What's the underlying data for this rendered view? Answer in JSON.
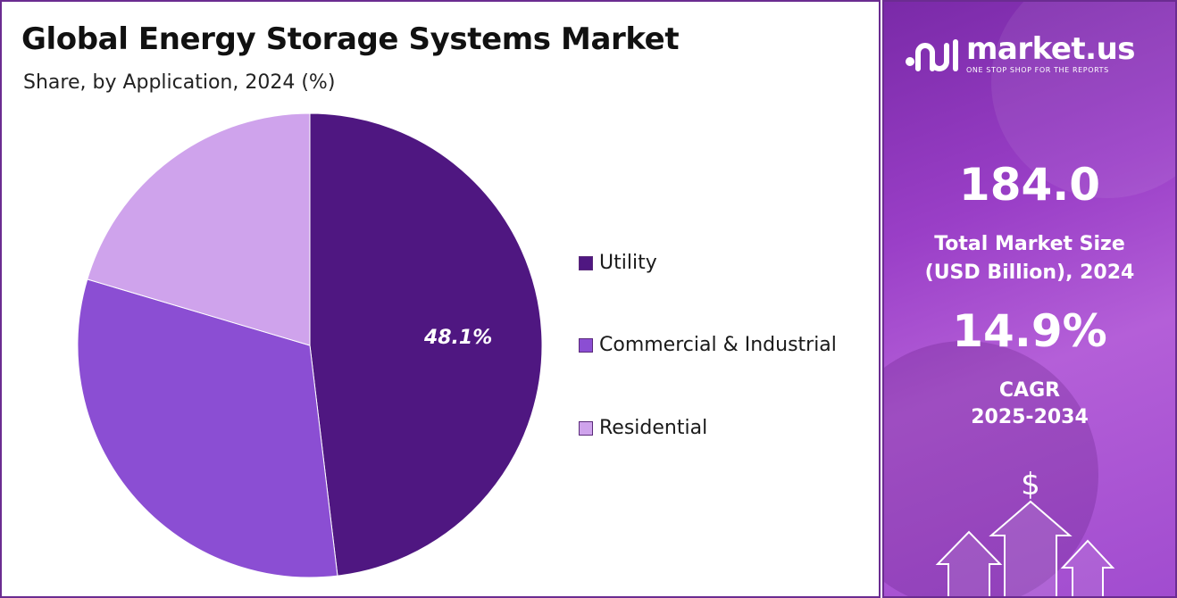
{
  "title": "Global Energy Storage Systems Market",
  "subtitle": "Share, by Application, 2024 (%)",
  "chart_data": {
    "type": "pie",
    "categories": [
      "Utility",
      "Commercial & Industrial",
      "Residential"
    ],
    "values": [
      48.1,
      31.5,
      20.4
    ],
    "colors": [
      "#4f1781",
      "#8b4ed3",
      "#cfa3ec"
    ],
    "data_labels": [
      "48.1%",
      "",
      ""
    ],
    "legend": "right",
    "start_angle_deg": 0,
    "direction": "clockwise"
  },
  "brand": {
    "name": "market.us",
    "tagline": "ONE STOP SHOP FOR THE REPORTS",
    "icon": "market-us-logo-icon"
  },
  "stats": {
    "market_size_value": "184.0",
    "market_size_label_line1": "Total Market Size",
    "market_size_label_line2": "(USD Billion), 2024",
    "cagr_value": "14.9%",
    "cagr_label_line1": "CAGR",
    "cagr_label_line2": "2025-2034"
  },
  "decor": {
    "currency_symbol": "$",
    "icons": [
      "dollar-icon",
      "arrow-up-icon"
    ]
  }
}
